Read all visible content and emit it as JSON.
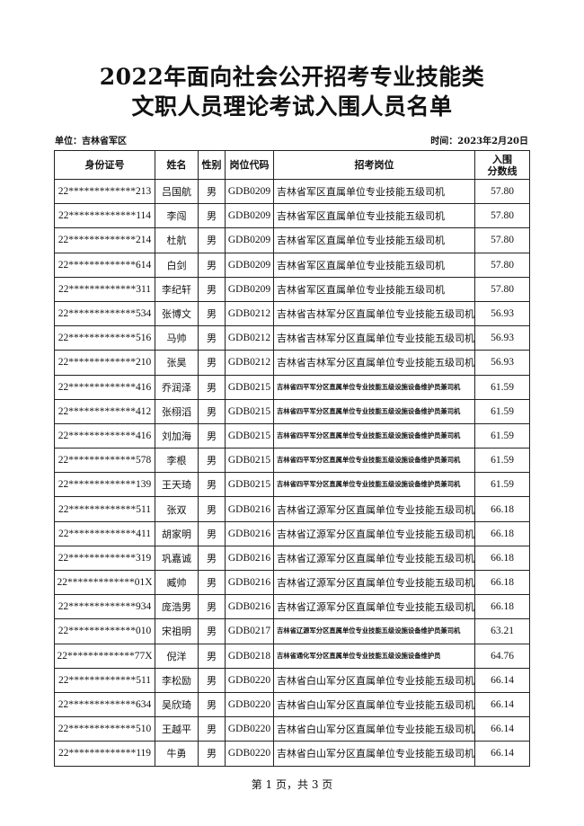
{
  "title_line1": "2022年面向社会公开招考专业技能类",
  "title_line2": "文职人员理论考试入围人员名单",
  "unit": "单位：吉林省军区",
  "time": "时间：2023年2月20日",
  "headers": {
    "id": "身份证号",
    "name": "姓名",
    "gender": "性别",
    "code": "岗位代码",
    "position": "招考岗位",
    "score_1": "入围",
    "score_2": "分数线"
  },
  "rows": [
    {
      "id": "22*************213",
      "name": "吕国航",
      "gender": "男",
      "code": "GDB0209",
      "position": "吉林省军区直属单位专业技能五级司机",
      "score": "57.80"
    },
    {
      "id": "22*************114",
      "name": "李闯",
      "gender": "男",
      "code": "GDB0209",
      "position": "吉林省军区直属单位专业技能五级司机",
      "score": "57.80"
    },
    {
      "id": "22*************214",
      "name": "杜航",
      "gender": "男",
      "code": "GDB0209",
      "position": "吉林省军区直属单位专业技能五级司机",
      "score": "57.80"
    },
    {
      "id": "22*************614",
      "name": "白剑",
      "gender": "男",
      "code": "GDB0209",
      "position": "吉林省军区直属单位专业技能五级司机",
      "score": "57.80"
    },
    {
      "id": "22*************311",
      "name": "李纪轩",
      "gender": "男",
      "code": "GDB0209",
      "position": "吉林省军区直属单位专业技能五级司机",
      "score": "57.80"
    },
    {
      "id": "22*************534",
      "name": "张博文",
      "gender": "男",
      "code": "GDB0212",
      "position": "吉林省吉林军分区直属单位专业技能五级司机",
      "score": "56.93"
    },
    {
      "id": "22*************516",
      "name": "马帅",
      "gender": "男",
      "code": "GDB0212",
      "position": "吉林省吉林军分区直属单位专业技能五级司机",
      "score": "56.93"
    },
    {
      "id": "22*************210",
      "name": "张昊",
      "gender": "男",
      "code": "GDB0212",
      "position": "吉林省吉林军分区直属单位专业技能五级司机",
      "score": "56.93"
    },
    {
      "id": "22*************416",
      "name": "乔润泽",
      "gender": "男",
      "code": "GDB0215",
      "position": "吉林省四平军分区直属单位专业技能五级设施设备维护员兼司机",
      "score": "61.59",
      "small": true
    },
    {
      "id": "22*************412",
      "name": "张栩滔",
      "gender": "男",
      "code": "GDB0215",
      "position": "吉林省四平军分区直属单位专业技能五级设施设备维护员兼司机",
      "score": "61.59",
      "small": true
    },
    {
      "id": "22*************416",
      "name": "刘加海",
      "gender": "男",
      "code": "GDB0215",
      "position": "吉林省四平军分区直属单位专业技能五级设施设备维护员兼司机",
      "score": "61.59",
      "small": true
    },
    {
      "id": "22*************578",
      "name": "李根",
      "gender": "男",
      "code": "GDB0215",
      "position": "吉林省四平军分区直属单位专业技能五级设施设备维护员兼司机",
      "score": "61.59",
      "small": true
    },
    {
      "id": "22*************139",
      "name": "王天琦",
      "gender": "男",
      "code": "GDB0215",
      "position": "吉林省四平军分区直属单位专业技能五级设施设备维护员兼司机",
      "score": "61.59",
      "small": true
    },
    {
      "id": "22*************511",
      "name": "张双",
      "gender": "男",
      "code": "GDB0216",
      "position": "吉林省辽源军分区直属单位专业技能五级司机",
      "score": "66.18"
    },
    {
      "id": "22*************411",
      "name": "胡家明",
      "gender": "男",
      "code": "GDB0216",
      "position": "吉林省辽源军分区直属单位专业技能五级司机",
      "score": "66.18"
    },
    {
      "id": "22*************319",
      "name": "巩嘉诚",
      "gender": "男",
      "code": "GDB0216",
      "position": "吉林省辽源军分区直属单位专业技能五级司机",
      "score": "66.18"
    },
    {
      "id": "22*************01X",
      "name": "臧帅",
      "gender": "男",
      "code": "GDB0216",
      "position": "吉林省辽源军分区直属单位专业技能五级司机",
      "score": "66.18"
    },
    {
      "id": "22*************934",
      "name": "庞浩男",
      "gender": "男",
      "code": "GDB0216",
      "position": "吉林省辽源军分区直属单位专业技能五级司机",
      "score": "66.18"
    },
    {
      "id": "22*************010",
      "name": "宋祖明",
      "gender": "男",
      "code": "GDB0217",
      "position": "吉林省辽源军分区直属单位专业技能五级设施设备维护员兼司机",
      "score": "63.21",
      "small": true
    },
    {
      "id": "22*************77X",
      "name": "倪洋",
      "gender": "男",
      "code": "GDB0218",
      "position": "吉林省通化军分区直属单位专业技能五级设施设备维护员",
      "score": "64.76",
      "small": true
    },
    {
      "id": "22*************511",
      "name": "李松励",
      "gender": "男",
      "code": "GDB0220",
      "position": "吉林省白山军分区直属单位专业技能五级司机",
      "score": "66.14"
    },
    {
      "id": "22*************634",
      "name": "吴欣琦",
      "gender": "男",
      "code": "GDB0220",
      "position": "吉林省白山军分区直属单位专业技能五级司机",
      "score": "66.14"
    },
    {
      "id": "22*************510",
      "name": "王越平",
      "gender": "男",
      "code": "GDB0220",
      "position": "吉林省白山军分区直属单位专业技能五级司机",
      "score": "66.14"
    },
    {
      "id": "22*************119",
      "name": "牛勇",
      "gender": "男",
      "code": "GDB0220",
      "position": "吉林省白山军分区直属单位专业技能五级司机",
      "score": "66.14"
    }
  ],
  "footer": "第 1 页，共 3 页"
}
